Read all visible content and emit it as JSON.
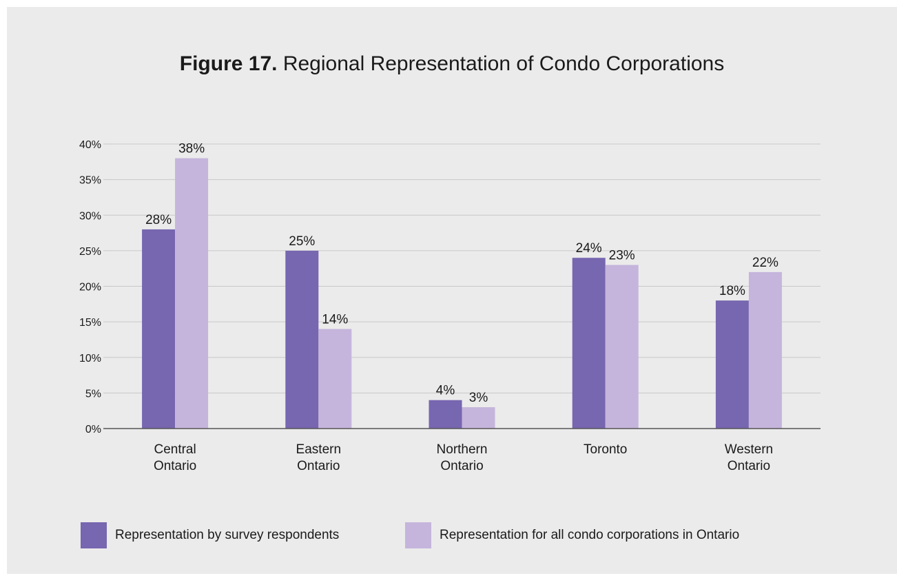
{
  "title": {
    "figure_label": "Figure 17.",
    "text": "Regional Representation of Condo Corporations"
  },
  "colors": {
    "series_1": "#7766b0",
    "series_2": "#c5b5dc",
    "grid": "#c8c8c8",
    "axis": "#555555",
    "background": "#ebebeb"
  },
  "chart_data": {
    "type": "bar",
    "title": "Figure 17. Regional Representation of Condo Corporations",
    "categories": [
      [
        "Central",
        "Ontario"
      ],
      [
        "Eastern",
        "Ontario"
      ],
      [
        "Northern",
        "Ontario"
      ],
      [
        "Toronto"
      ],
      [
        "Western",
        "Ontario"
      ]
    ],
    "series": [
      {
        "name": "Representation by survey respondents",
        "values": [
          28,
          25,
          4,
          24,
          18
        ],
        "labels": [
          "28%",
          "25%",
          "4%",
          "24%",
          "18%"
        ]
      },
      {
        "name": "Representation for all condo corporations in Ontario",
        "values": [
          38,
          14,
          3,
          23,
          22
        ],
        "labels": [
          "38%",
          "14%",
          "3%",
          "23%",
          "22%"
        ]
      }
    ],
    "ylim": [
      0,
      40
    ],
    "yticks": [
      0,
      5,
      10,
      15,
      20,
      25,
      30,
      35,
      40
    ],
    "ytick_labels": [
      "0%",
      "5%",
      "10%",
      "15%",
      "20%",
      "25%",
      "30%",
      "35%",
      "40%"
    ],
    "xlabel": "",
    "ylabel": "",
    "grid": true,
    "legend_position": "bottom"
  }
}
